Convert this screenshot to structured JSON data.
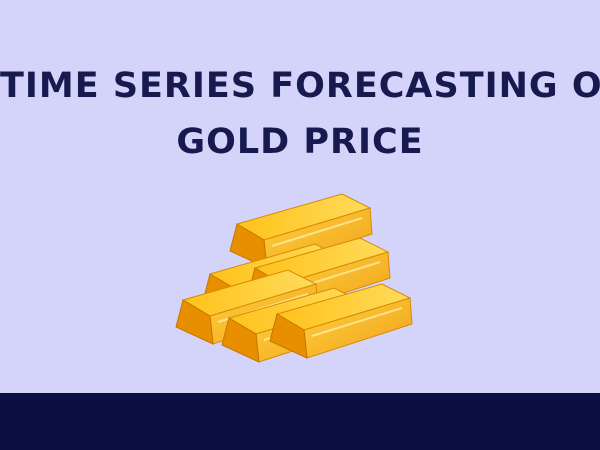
{
  "title": {
    "lines": [
      "TIME SERIES FORECASTING OF",
      "GOLD PRICE"
    ]
  }
}
